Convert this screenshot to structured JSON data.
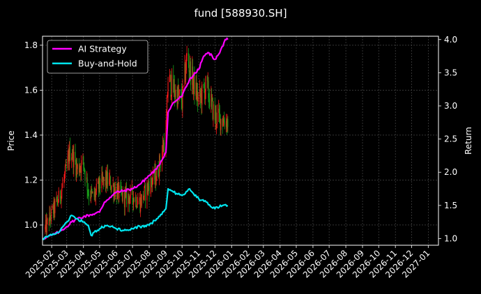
{
  "chart_data": {
    "type": "line",
    "title": "fund [588930.SH]",
    "ylabel_left": "Price",
    "ylabel_right": "Return",
    "x_ticks": [
      "2025-02",
      "2025-03",
      "2025-04",
      "2025-05",
      "2025-06",
      "2025-07",
      "2025-08",
      "2025-09",
      "2025-10",
      "2025-11",
      "2025-12",
      "2026-01",
      "2026-02",
      "2026-03",
      "2026-04",
      "2026-05",
      "2026-06",
      "2026-07",
      "2026-08",
      "2026-09",
      "2026-10",
      "2026-11",
      "2026-12",
      "2027-01"
    ],
    "xlim": [
      "2025-01-15",
      "2027-01-20"
    ],
    "y_left_ticks": [
      1.0,
      1.2,
      1.4,
      1.6,
      1.8
    ],
    "y_left_lim": [
      0.91,
      1.84
    ],
    "y_right_ticks": [
      1.0,
      1.5,
      2.0,
      2.5,
      3.0,
      3.5,
      4.0
    ],
    "y_right_lim": [
      0.9,
      4.05
    ],
    "grid": true,
    "legend_position": "top-left",
    "colors": {
      "background": "#000000",
      "up_candle": "#ff1a1a",
      "down_candle": "#1a9e1a",
      "grid": "#555555",
      "text": "#ffffff"
    },
    "series": [
      {
        "name": "AI Strategy",
        "color": "#ff00ff",
        "axis": "right",
        "points": [
          [
            "2025-01-15",
            1.0
          ],
          [
            "2025-02-01",
            1.05
          ],
          [
            "2025-02-15",
            1.1
          ],
          [
            "2025-03-01",
            1.18
          ],
          [
            "2025-03-10",
            1.25
          ],
          [
            "2025-03-20",
            1.3
          ],
          [
            "2025-04-01",
            1.33
          ],
          [
            "2025-04-15",
            1.36
          ],
          [
            "2025-05-01",
            1.4
          ],
          [
            "2025-05-10",
            1.55
          ],
          [
            "2025-05-20",
            1.62
          ],
          [
            "2025-06-01",
            1.7
          ],
          [
            "2025-06-15",
            1.72
          ],
          [
            "2025-07-01",
            1.75
          ],
          [
            "2025-07-15",
            1.82
          ],
          [
            "2025-08-01",
            1.95
          ],
          [
            "2025-08-15",
            2.05
          ],
          [
            "2025-09-01",
            2.3
          ],
          [
            "2025-09-05",
            2.9
          ],
          [
            "2025-09-15",
            3.05
          ],
          [
            "2025-10-01",
            3.15
          ],
          [
            "2025-10-15",
            3.4
          ],
          [
            "2025-11-01",
            3.55
          ],
          [
            "2025-11-10",
            3.75
          ],
          [
            "2025-11-20",
            3.8
          ],
          [
            "2025-12-01",
            3.7
          ],
          [
            "2025-12-10",
            3.8
          ],
          [
            "2025-12-20",
            4.0
          ],
          [
            "2025-12-25",
            4.0
          ]
        ]
      },
      {
        "name": "Buy-and-Hold",
        "color": "#00e5ee",
        "axis": "right",
        "points": [
          [
            "2025-01-15",
            1.0
          ],
          [
            "2025-02-01",
            1.05
          ],
          [
            "2025-02-15",
            1.1
          ],
          [
            "2025-03-01",
            1.25
          ],
          [
            "2025-03-10",
            1.35
          ],
          [
            "2025-03-20",
            1.3
          ],
          [
            "2025-04-01",
            1.25
          ],
          [
            "2025-04-10",
            1.2
          ],
          [
            "2025-04-15",
            1.05
          ],
          [
            "2025-05-01",
            1.15
          ],
          [
            "2025-05-15",
            1.2
          ],
          [
            "2025-06-01",
            1.15
          ],
          [
            "2025-06-15",
            1.12
          ],
          [
            "2025-07-01",
            1.15
          ],
          [
            "2025-07-15",
            1.18
          ],
          [
            "2025-08-01",
            1.2
          ],
          [
            "2025-08-15",
            1.3
          ],
          [
            "2025-09-01",
            1.45
          ],
          [
            "2025-09-05",
            1.75
          ],
          [
            "2025-09-15",
            1.7
          ],
          [
            "2025-10-01",
            1.65
          ],
          [
            "2025-10-15",
            1.75
          ],
          [
            "2025-11-01",
            1.6
          ],
          [
            "2025-11-15",
            1.55
          ],
          [
            "2025-12-01",
            1.45
          ],
          [
            "2025-12-15",
            1.5
          ],
          [
            "2025-12-25",
            1.5
          ]
        ]
      }
    ],
    "price_path": [
      [
        "2025-01-20",
        0.98
      ],
      [
        "2025-02-01",
        1.05
      ],
      [
        "2025-02-15",
        1.12
      ],
      [
        "2025-03-01",
        1.25
      ],
      [
        "2025-03-08",
        1.34
      ],
      [
        "2025-03-20",
        1.25
      ],
      [
        "2025-04-01",
        1.28
      ],
      [
        "2025-04-10",
        1.15
      ],
      [
        "2025-04-20",
        1.12
      ],
      [
        "2025-05-01",
        1.18
      ],
      [
        "2025-05-15",
        1.2
      ],
      [
        "2025-06-01",
        1.15
      ],
      [
        "2025-06-15",
        1.12
      ],
      [
        "2025-07-01",
        1.13
      ],
      [
        "2025-07-15",
        1.1
      ],
      [
        "2025-08-01",
        1.18
      ],
      [
        "2025-08-15",
        1.22
      ],
      [
        "2025-09-01",
        1.4
      ],
      [
        "2025-09-05",
        1.65
      ],
      [
        "2025-09-15",
        1.6
      ],
      [
        "2025-10-01",
        1.55
      ],
      [
        "2025-10-10",
        1.75
      ],
      [
        "2025-10-20",
        1.65
      ],
      [
        "2025-11-01",
        1.55
      ],
      [
        "2025-11-15",
        1.62
      ],
      [
        "2025-12-01",
        1.48
      ],
      [
        "2025-12-15",
        1.47
      ],
      [
        "2025-12-25",
        1.46
      ]
    ]
  }
}
